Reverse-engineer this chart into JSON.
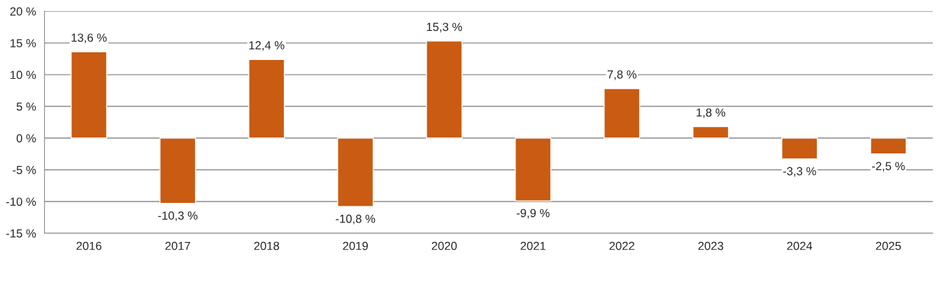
{
  "chart_data": {
    "type": "bar",
    "categories": [
      "2016",
      "2017",
      "2018",
      "2019",
      "2020",
      "2021",
      "2022",
      "2023",
      "2024",
      "2025"
    ],
    "series": [
      {
        "color": "#c95b12",
        "values": [
          13.6,
          -10.3,
          12.4,
          -10.8,
          15.3,
          -9.9,
          7.8,
          1.8,
          -3.3,
          -2.5
        ],
        "value_labels": [
          "13,6 %",
          "-10,3 %",
          "12,4 %",
          "-10,8 %",
          "15,3 %",
          "-9,9 %",
          "7,8 %",
          "1,8 %",
          "-3,3 %",
          "-2,5 %"
        ]
      }
    ],
    "ylim": [
      -15,
      20
    ],
    "yticks": [
      {
        "value": -15,
        "label": "-15 %"
      },
      {
        "value": -10,
        "label": "-10 %"
      },
      {
        "value": -5,
        "label": "-5 %"
      },
      {
        "value": 0,
        "label": "0 %"
      },
      {
        "value": 5,
        "label": "5 %"
      },
      {
        "value": 10,
        "label": "10 %"
      },
      {
        "value": 15,
        "label": "15 %"
      },
      {
        "value": 20,
        "label": "20 %"
      }
    ],
    "grid": "y"
  }
}
